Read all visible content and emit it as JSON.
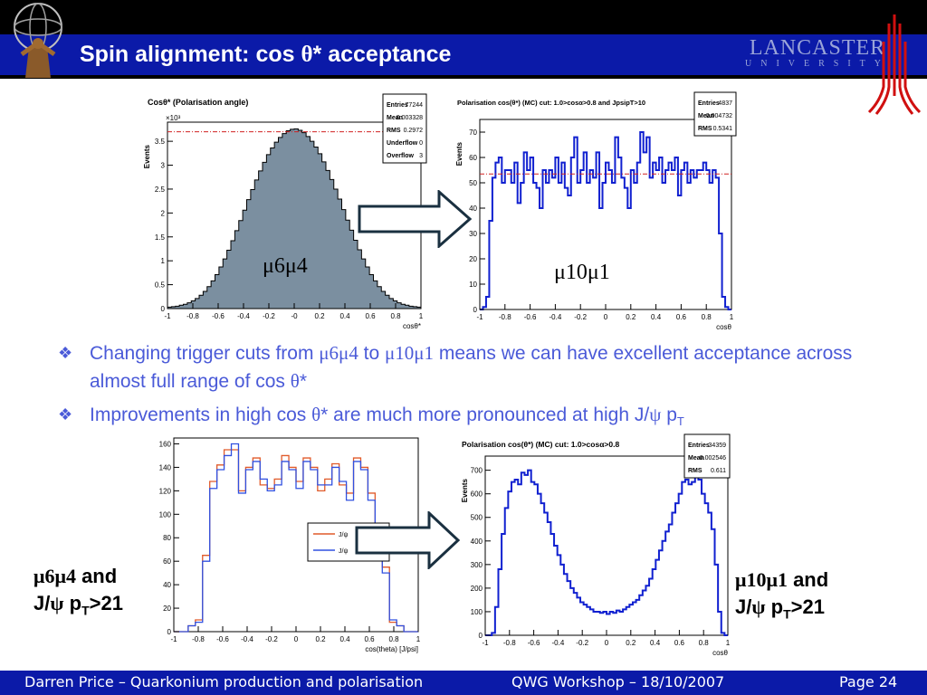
{
  "slide": {
    "title_pre": "Spin alignment: cos ",
    "title_sym": "θ",
    "title_post": "* acceptance",
    "university_line1": "LANCASTER",
    "university_line2": "UNIVERSITY"
  },
  "bullets": [
    {
      "t1": "Changing trigger cuts from ",
      "s1": "μ6μ4",
      "t2": " to ",
      "s2": "μ10μ1",
      "t3": " means we can have excellent acceptance across almost full range of cos ",
      "s3": "θ",
      "t4": "*"
    },
    {
      "t1": "Improvements in high cos ",
      "s1": "θ",
      "t2": "* are much more pronounced at high J/",
      "s2": "ψ",
      "t3": " p",
      "sub": "T"
    }
  ],
  "labels": {
    "top_left_sym": "μ6μ4",
    "top_right_sym": "μ10μ1",
    "bottom_left_sym": "μ6μ4",
    "bottom_left_and": " and",
    "bottom_left_l2a": "J/",
    "bottom_left_l2sym": "ψ",
    "bottom_left_l2b": " p",
    "bottom_left_l2sub": "T",
    "bottom_left_l2c": ">21",
    "bottom_right_sym": "μ10μ1",
    "bottom_right_and": " and",
    "bottom_right_l2a": "J/",
    "bottom_right_l2sym": "ψ",
    "bottom_right_l2b": " p",
    "bottom_right_l2sub": "T",
    "bottom_right_l2c": ">21"
  },
  "footer": {
    "author": "Darren Price – Quarkonium production and polarisation",
    "event": "QWG Workshop – 18/10/2007",
    "page": "Page 24"
  },
  "chart_data": [
    {
      "type": "bar",
      "title": "Cosθ* (Polarisation angle)",
      "xlabel": "cosθ*",
      "ylabel": "Events",
      "exponent": "×10³",
      "xlim": [
        -1,
        1
      ],
      "ylim": [
        0,
        3.9
      ],
      "x_ticks": [
        "-1",
        "-0.8",
        "-0.6",
        "-0.4",
        "-0.2",
        "-0",
        "0.2",
        "0.4",
        "0.6",
        "0.8",
        "1"
      ],
      "y_ticks": [
        "0",
        "0.5",
        "1",
        "1.5",
        "2",
        "2.5",
        "3",
        "3.5"
      ],
      "stats": [
        [
          "Entries",
          "77244"
        ],
        [
          "Mean",
          "0.003328"
        ],
        [
          "RMS",
          "0.2972"
        ],
        [
          "Underflow",
          "0"
        ],
        [
          "Overflow",
          "3"
        ]
      ],
      "fill_color": "#7b8fa0",
      "values": [
        0.03,
        0.04,
        0.05,
        0.07,
        0.09,
        0.12,
        0.16,
        0.21,
        0.28,
        0.36,
        0.46,
        0.58,
        0.71,
        0.87,
        1.04,
        1.22,
        1.42,
        1.63,
        1.84,
        2.06,
        2.28,
        2.49,
        2.69,
        2.88,
        3.06,
        3.22,
        3.36,
        3.48,
        3.58,
        3.66,
        3.72,
        3.75,
        3.76,
        3.73,
        3.68,
        3.6,
        3.5,
        3.38,
        3.24,
        3.07,
        2.89,
        2.7,
        2.5,
        2.29,
        2.07,
        1.85,
        1.64,
        1.43,
        1.23,
        1.04,
        0.87,
        0.71,
        0.58,
        0.46,
        0.36,
        0.28,
        0.21,
        0.16,
        0.12,
        0.09,
        0.07,
        0.05,
        0.04,
        0.03
      ],
      "ref_line": 3.7
    },
    {
      "type": "bar",
      "title": "Polarisation cos(θ*) (MC) cut: 1.0>cosα>0.8 and JpsipT>10",
      "xlabel": "cosθ",
      "ylabel": "Events",
      "xlim": [
        -1,
        1
      ],
      "ylim": [
        0,
        75
      ],
      "x_ticks": [
        "-1",
        "-0.8",
        "-0.6",
        "-0.4",
        "-0.2",
        "0",
        "0.2",
        "0.4",
        "0.6",
        "0.8",
        "1"
      ],
      "y_ticks": [
        "0",
        "10",
        "20",
        "30",
        "40",
        "50",
        "60",
        "70"
      ],
      "stats": [
        [
          "Entries",
          "4837"
        ],
        [
          "Mean",
          "-0.004732"
        ],
        [
          "RMS",
          "0.5341"
        ]
      ],
      "values": [
        0,
        1,
        5,
        35,
        52,
        58,
        60,
        50,
        55,
        55,
        50,
        58,
        42,
        50,
        62,
        55,
        60,
        50,
        48,
        40,
        55,
        50,
        55,
        52,
        60,
        50,
        58,
        48,
        45,
        60,
        68,
        50,
        55,
        62,
        50,
        55,
        52,
        62,
        40,
        50,
        58,
        55,
        50,
        68,
        60,
        52,
        48,
        40,
        55,
        50,
        58,
        70,
        62,
        68,
        52,
        58,
        55,
        60,
        50,
        55,
        58,
        55,
        60,
        45,
        55,
        58,
        50,
        55,
        52,
        55,
        55,
        58,
        55,
        50,
        55,
        52,
        30,
        5,
        1,
        0
      ],
      "ref_line": 53.5
    },
    {
      "type": "line",
      "title": "",
      "xlabel": "cos(theta) [J/psi]",
      "ylabel": "",
      "xlim": [
        -1,
        1
      ],
      "ylim": [
        0,
        165
      ],
      "x_ticks": [
        "-1",
        "-0.8",
        "-0.6",
        "-0.4",
        "-0.2",
        "0",
        "0.2",
        "0.4",
        "0.6",
        "0.8",
        "1"
      ],
      "y_ticks": [
        "0",
        "20",
        "40",
        "60",
        "80",
        "100",
        "120",
        "140",
        "160"
      ],
      "legend": [
        "J/ψ",
        "J/ψ"
      ],
      "series": [
        {
          "name": "J/ψ",
          "color": "#e05a2a",
          "values": [
            0,
            0,
            5,
            10,
            65,
            128,
            142,
            155,
            155,
            120,
            140,
            148,
            125,
            122,
            130,
            150,
            140,
            128,
            148,
            140,
            120,
            130,
            143,
            125,
            118,
            148,
            140,
            118,
            68,
            55,
            8,
            5,
            0,
            0
          ]
        },
        {
          "name": "J/ψ",
          "color": "#3050e0",
          "values": [
            0,
            0,
            5,
            8,
            60,
            122,
            138,
            150,
            160,
            118,
            138,
            145,
            130,
            120,
            125,
            145,
            138,
            122,
            145,
            138,
            125,
            125,
            140,
            128,
            112,
            145,
            138,
            112,
            62,
            50,
            10,
            5,
            0,
            0
          ]
        }
      ]
    },
    {
      "type": "line",
      "title": "Polarisation cos(θ*) (MC) cut: 1.0>cosα>0.8",
      "xlabel": "cosθ",
      "ylabel": "Events",
      "xlim": [
        -1,
        1
      ],
      "ylim": [
        0,
        760
      ],
      "x_ticks": [
        "-1",
        "-0.8",
        "-0.6",
        "-0.4",
        "-0.2",
        "0",
        "0.2",
        "0.4",
        "0.6",
        "0.8",
        "1"
      ],
      "y_ticks": [
        "0",
        "100",
        "200",
        "300",
        "400",
        "500",
        "600",
        "700"
      ],
      "stats": [
        [
          "Entries",
          "34359"
        ],
        [
          "Mean",
          "-0.002546"
        ],
        [
          "RMS",
          "0.611"
        ]
      ],
      "values": [
        0,
        0,
        10,
        120,
        280,
        430,
        540,
        610,
        650,
        660,
        640,
        690,
        680,
        700,
        650,
        640,
        600,
        560,
        520,
        480,
        430,
        380,
        340,
        300,
        260,
        230,
        200,
        180,
        160,
        140,
        130,
        120,
        110,
        100,
        100,
        95,
        100,
        90,
        100,
        95,
        105,
        100,
        110,
        120,
        130,
        140,
        150,
        170,
        190,
        210,
        240,
        280,
        320,
        360,
        400,
        440,
        470,
        520,
        560,
        600,
        650,
        660,
        640,
        650,
        680,
        660,
        600,
        560,
        520,
        450,
        300,
        100,
        10,
        0
      ]
    }
  ]
}
